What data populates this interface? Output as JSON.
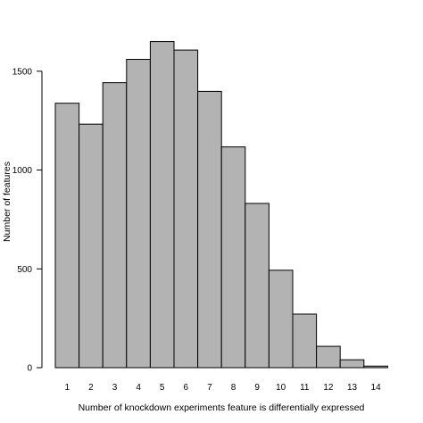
{
  "chart_data": {
    "type": "bar",
    "categories": [
      "1",
      "2",
      "3",
      "4",
      "5",
      "6",
      "7",
      "8",
      "9",
      "10",
      "11",
      "12",
      "13",
      "14"
    ],
    "values": [
      1338,
      1232,
      1442,
      1560,
      1650,
      1607,
      1398,
      1117,
      831,
      493,
      271,
      108,
      40,
      8
    ],
    "xlabel": "Number of knockdown experiments feature is differentially expressed",
    "ylabel": "Number of features",
    "yticks": [
      0,
      500,
      1000,
      1500
    ],
    "ylim": [
      0,
      1650
    ],
    "bar_color": "#b3b3b3",
    "bar_edge_color": "#000000",
    "grid": false,
    "legend": "none"
  }
}
